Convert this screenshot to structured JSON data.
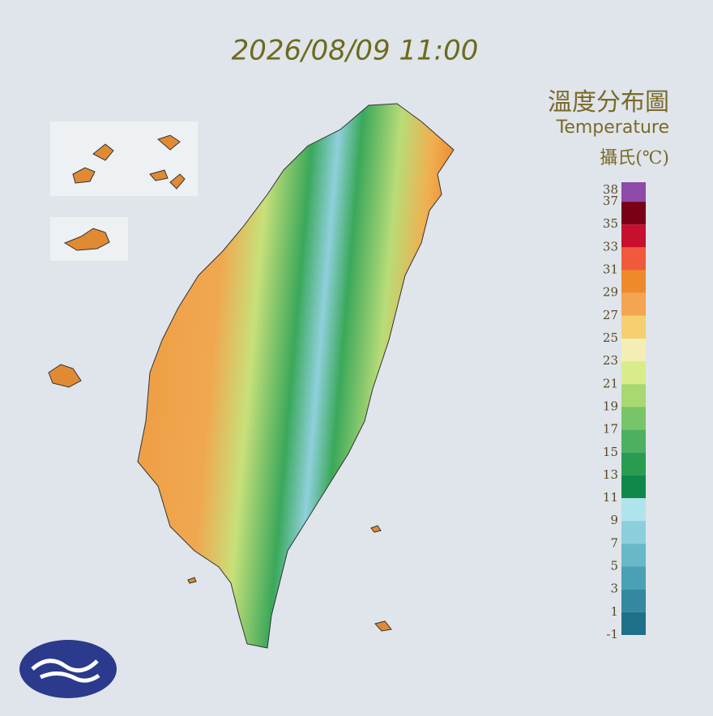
{
  "timestamp": "2026/08/09 11:00",
  "legend": {
    "title": "溫度分布圖",
    "subtitle": "Temperature",
    "unit": "攝氏(℃)",
    "ticks": [
      38,
      37,
      35,
      33,
      31,
      29,
      27,
      25,
      23,
      21,
      19,
      17,
      15,
      13,
      11,
      9,
      7,
      5,
      3,
      1,
      -1
    ],
    "colors": [
      "#8e4aa8",
      "#7a0018",
      "#c8102e",
      "#f05a3c",
      "#ef8a2c",
      "#f3a550",
      "#f6cf70",
      "#f3efb4",
      "#d8ec8a",
      "#a8d870",
      "#78c468",
      "#4cb060",
      "#2a9c52",
      "#10884a",
      "#b0e4ec",
      "#8ccedc",
      "#68b8c8",
      "#4aa0b4",
      "#3488a0",
      "#1e7088"
    ]
  }
}
